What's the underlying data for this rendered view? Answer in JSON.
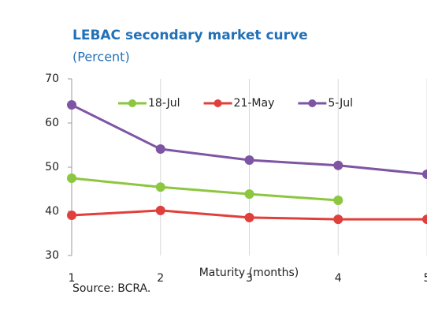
{
  "chart_data": {
    "type": "line",
    "title": "LEBAC secondary market curve",
    "subtitle": "(Percent)",
    "x_label": "Maturity (months)",
    "source": "Source: BCRA.",
    "x": [
      1,
      2,
      3,
      4,
      5
    ],
    "xlim": [
      1,
      5
    ],
    "xticks": [
      1,
      2,
      3,
      4,
      5
    ],
    "ylim": [
      30,
      70
    ],
    "yticks": [
      30,
      40,
      50,
      60,
      70
    ],
    "grid": true,
    "legend": "top",
    "series": [
      {
        "name": "18-Jul",
        "color": "#8dc63f",
        "values": [
          47.5,
          45.5,
          43.9,
          42.5,
          null
        ]
      },
      {
        "name": "21-May",
        "color": "#e0403c",
        "values": [
          39.1,
          40.2,
          38.6,
          38.2,
          38.2
        ]
      },
      {
        "name": "5-Jul",
        "color": "#7e55a3",
        "values": [
          64.1,
          54.1,
          51.6,
          50.4,
          48.4
        ]
      }
    ]
  }
}
